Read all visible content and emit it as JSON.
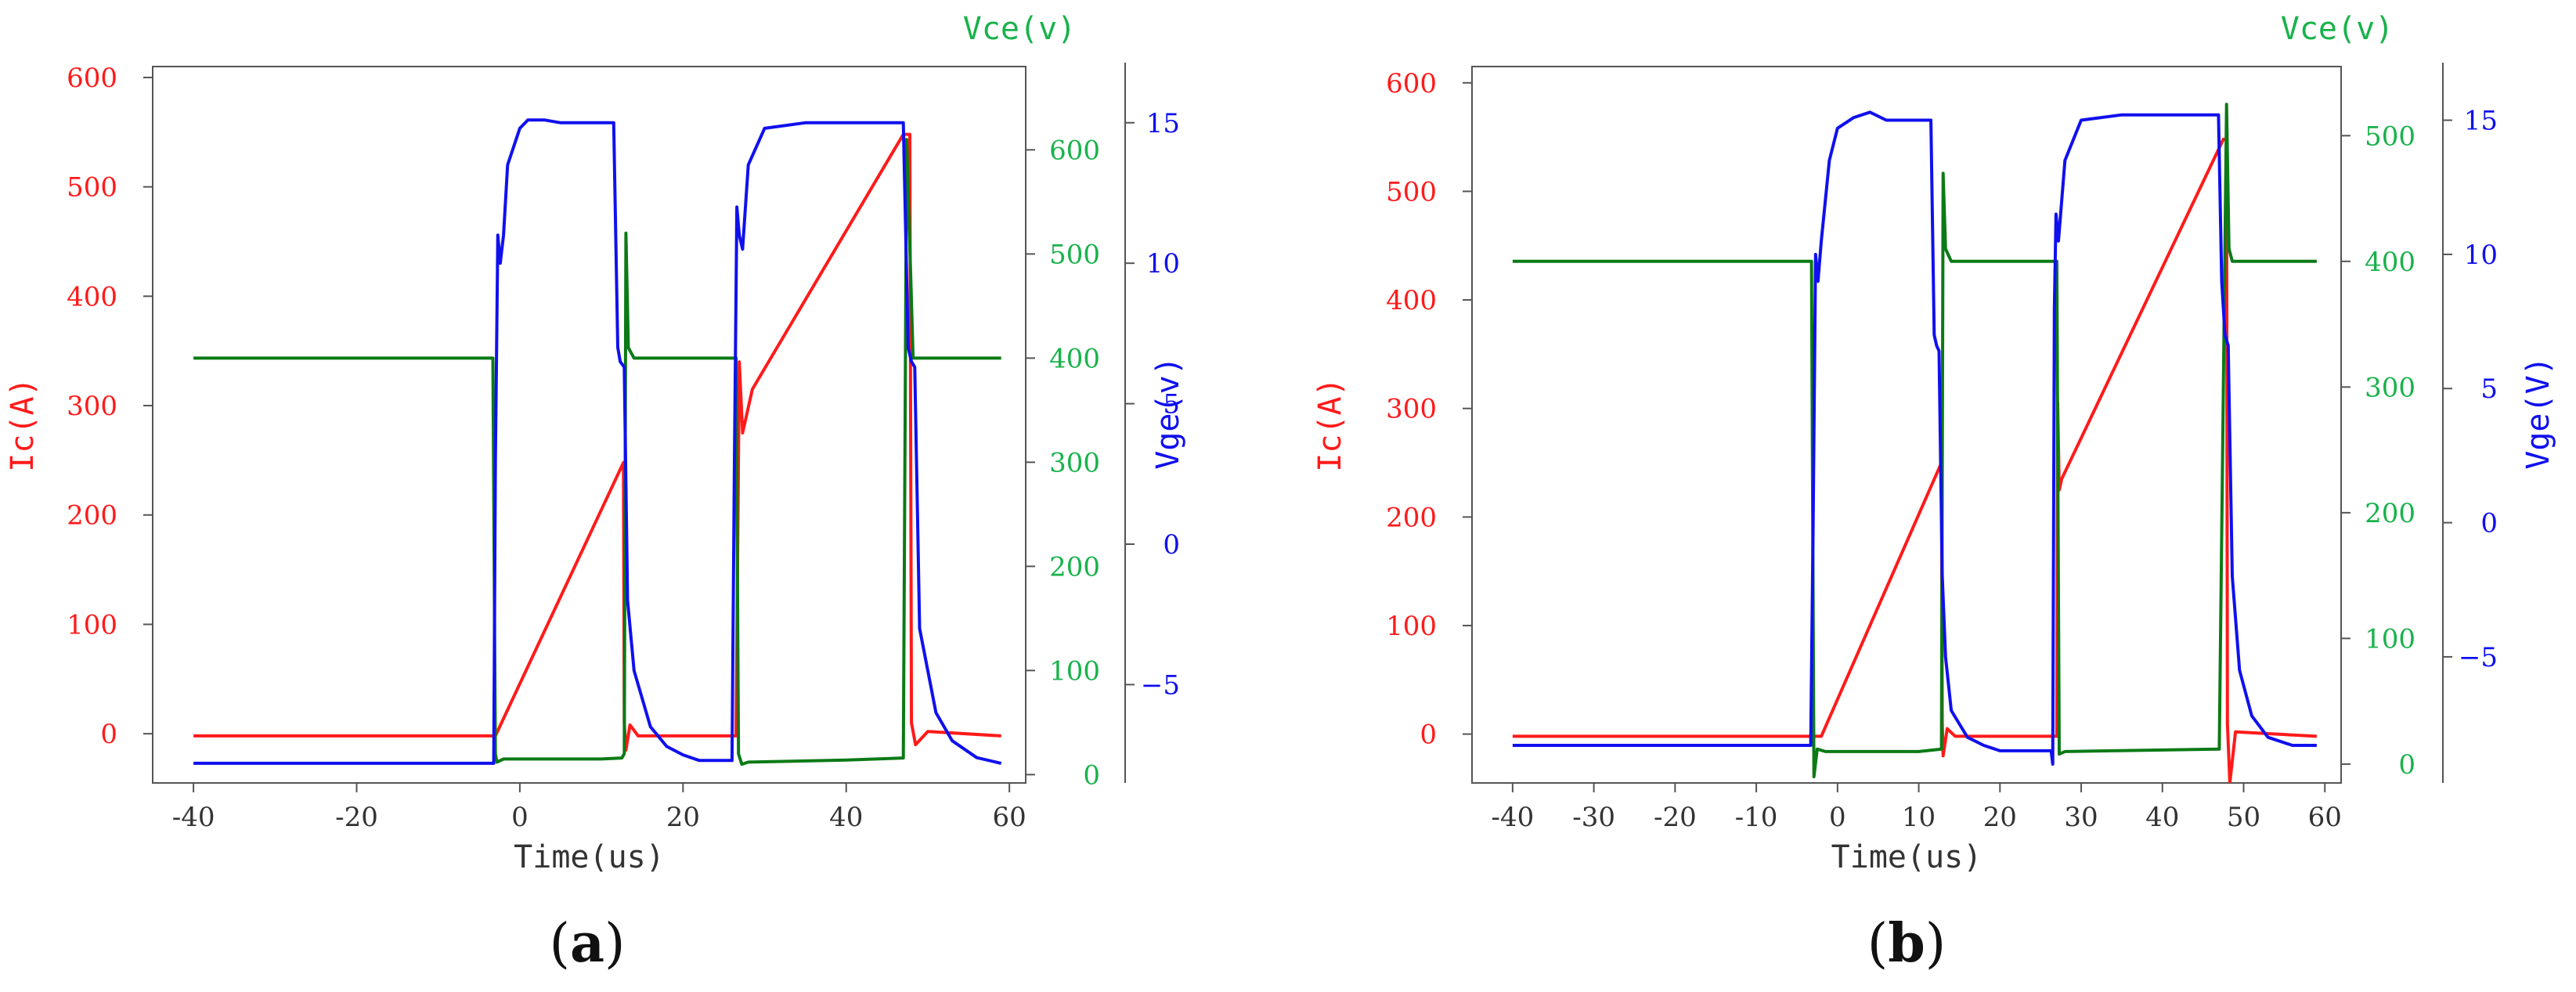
{
  "colors": {
    "ic": "#ff1a1a",
    "vce": "#0c7a16",
    "vge": "#1010ee",
    "vce_tick": "#19b24b",
    "axis": "#555555"
  },
  "chart_data": [
    {
      "type": "line",
      "panel_label": "a",
      "xlabel": "Time(us)",
      "ylabel_left": "Ic(A)",
      "ylabel_right_inner": "Vce(v)",
      "ylabel_right_outer": "Vge(v)",
      "xlim": [
        -45,
        62
      ],
      "ylim_left": [
        -45,
        610
      ],
      "ylim_vce": [
        -8,
        680
      ],
      "ylim_vge": [
        -8.5,
        17
      ],
      "x_ticks": [
        "-40",
        "-20",
        "0",
        "20",
        "40",
        "60"
      ],
      "x_tick_values": [
        -40,
        -20,
        0,
        20,
        40,
        60
      ],
      "left_ticks": [
        "0",
        "100",
        "200",
        "300",
        "400",
        "500",
        "600"
      ],
      "left_tick_values": [
        0,
        100,
        200,
        300,
        400,
        500,
        600
      ],
      "vce_ticks": [
        "0",
        "100",
        "200",
        "300",
        "400",
        "500",
        "600"
      ],
      "vce_tick_values": [
        0,
        100,
        200,
        300,
        400,
        500,
        600
      ],
      "vge_ticks": [
        "−5",
        "0",
        "5",
        "10",
        "15"
      ],
      "vge_tick_values": [
        -5,
        0,
        5,
        10,
        15
      ],
      "grid": false,
      "series": [
        {
          "name": "Ic(A)",
          "axis": "left",
          "color_key": "ic",
          "x": [
            -40,
            -3,
            12.7,
            12.8,
            13.0,
            13.5,
            14.5,
            26.5,
            26.9,
            27.3,
            28.5,
            47,
            47.8,
            48.0,
            48.5,
            50,
            59
          ],
          "y": [
            -2,
            -2,
            248,
            10,
            -15,
            8,
            -2,
            -2,
            340,
            275,
            315,
            548,
            548,
            10,
            -10,
            2,
            -2
          ]
        },
        {
          "name": "Vce(v)",
          "axis": "vce",
          "color_key": "vce",
          "x": [
            -40,
            -3.3,
            -3.0,
            -2.8,
            -2,
            10,
            12.5,
            12.8,
            13.0,
            13.3,
            14,
            15,
            26,
            26.5,
            26.8,
            27.2,
            28,
            40,
            47,
            47.4,
            47.9,
            48.2,
            49,
            59
          ],
          "y": [
            400,
            400,
            20,
            12,
            15,
            15,
            16,
            20,
            520,
            410,
            400,
            400,
            400,
            400,
            20,
            10,
            12,
            14,
            16,
            610,
            480,
            400,
            400,
            400
          ]
        },
        {
          "name": "Vge(v)",
          "axis": "vge",
          "color_key": "vge",
          "x": [
            -40,
            -3.2,
            -3.0,
            -2.7,
            -2.4,
            -2.0,
            -1.5,
            0,
            1,
            3,
            5,
            11.5,
            12.0,
            12.3,
            12.8,
            13.2,
            14,
            16,
            18,
            20,
            22,
            26.0,
            26.3,
            26.6,
            26.9,
            27.3,
            28,
            30,
            35,
            40,
            47.0,
            47.3,
            47.6,
            48.0,
            48.4,
            49,
            51,
            53,
            56,
            59
          ],
          "y": [
            -7.8,
            -7.8,
            3,
            11,
            10,
            11,
            13.5,
            14.8,
            15.1,
            15.1,
            15.0,
            15.0,
            7,
            6.5,
            6.3,
            -2,
            -4.5,
            -6.5,
            -7.2,
            -7.5,
            -7.7,
            -7.7,
            3,
            12,
            11,
            10.5,
            13.5,
            14.8,
            15.0,
            15.0,
            15.0,
            11,
            7,
            6.5,
            6.3,
            -3,
            -6,
            -7,
            -7.6,
            -7.8
          ]
        }
      ]
    },
    {
      "type": "line",
      "panel_label": "b",
      "xlabel": "Time(us)",
      "ylabel_left": "Ic(A)",
      "ylabel_right_inner": "Vce(v)",
      "ylabel_right_outer": "Vge(V)",
      "xlim": [
        -45,
        62
      ],
      "ylim_left": [
        -45,
        615
      ],
      "ylim_vce": [
        -15,
        555
      ],
      "ylim_vge": [
        -9.7,
        17
      ],
      "x_ticks": [
        "-40",
        "-30",
        "-20",
        "-10",
        "0",
        "10",
        "20",
        "30",
        "40",
        "50",
        "60"
      ],
      "x_tick_values": [
        -40,
        -30,
        -20,
        -10,
        0,
        10,
        20,
        30,
        40,
        50,
        60
      ],
      "left_ticks": [
        "0",
        "100",
        "200",
        "300",
        "400",
        "500",
        "600"
      ],
      "left_tick_values": [
        0,
        100,
        200,
        300,
        400,
        500,
        600
      ],
      "vce_ticks": [
        "0",
        "100",
        "200",
        "300",
        "400",
        "500"
      ],
      "vce_tick_values": [
        0,
        100,
        200,
        300,
        400,
        500
      ],
      "vge_ticks": [
        "−5",
        "0",
        "5",
        "10",
        "15"
      ],
      "vge_tick_values": [
        -5,
        0,
        5,
        10,
        15
      ],
      "grid": false,
      "series": [
        {
          "name": "Ic(A)",
          "axis": "left",
          "color_key": "ic",
          "x": [
            -40,
            -2,
            12.8,
            12.9,
            13.0,
            13.5,
            14.5,
            27,
            27.1,
            27.3,
            27.6,
            47.5,
            47.9,
            48.0,
            48.3,
            49,
            59
          ],
          "y": [
            -2,
            -2,
            250,
            10,
            -20,
            5,
            -2,
            -2,
            305,
            225,
            235,
            548,
            548,
            10,
            -45,
            2,
            -2
          ]
        },
        {
          "name": "Vce(v)",
          "axis": "vce",
          "color_key": "vce",
          "x": [
            -40,
            -3.2,
            -2.9,
            -2.5,
            -1.5,
            10,
            12.8,
            13.0,
            13.3,
            14,
            26.5,
            27.0,
            27.3,
            28,
            47,
            47.9,
            48.2,
            48.6,
            50,
            59
          ],
          "y": [
            400,
            400,
            -10,
            12,
            10,
            10,
            12,
            470,
            410,
            400,
            400,
            400,
            8,
            10,
            12,
            525,
            410,
            400,
            400,
            400
          ]
        },
        {
          "name": "Vge(v)",
          "axis": "vge",
          "color_key": "vge",
          "x": [
            -40,
            -3.3,
            -3.0,
            -2.7,
            -2.4,
            -2.0,
            -1.0,
            0,
            2,
            4,
            6,
            11.5,
            11.9,
            12.2,
            12.5,
            12.9,
            13.3,
            14,
            16,
            18,
            20,
            22,
            26.3,
            26.5,
            26.7,
            26.9,
            27.2,
            28,
            30,
            35,
            40,
            46.9,
            47.3,
            47.7,
            48.1,
            48.6,
            49.5,
            51,
            53,
            56,
            59
          ],
          "y": [
            -8.3,
            -8.3,
            0,
            10,
            9,
            10.5,
            13.5,
            14.7,
            15.1,
            15.3,
            15.0,
            15.0,
            7,
            6.6,
            6.4,
            -2,
            -5,
            -7,
            -8,
            -8.3,
            -8.5,
            -8.5,
            -8.5,
            -9,
            8,
            11.5,
            10.5,
            13.5,
            15.0,
            15.2,
            15.2,
            15.2,
            9,
            7,
            6.6,
            -2,
            -5.5,
            -7.2,
            -8,
            -8.3,
            -8.3
          ]
        }
      ]
    }
  ]
}
